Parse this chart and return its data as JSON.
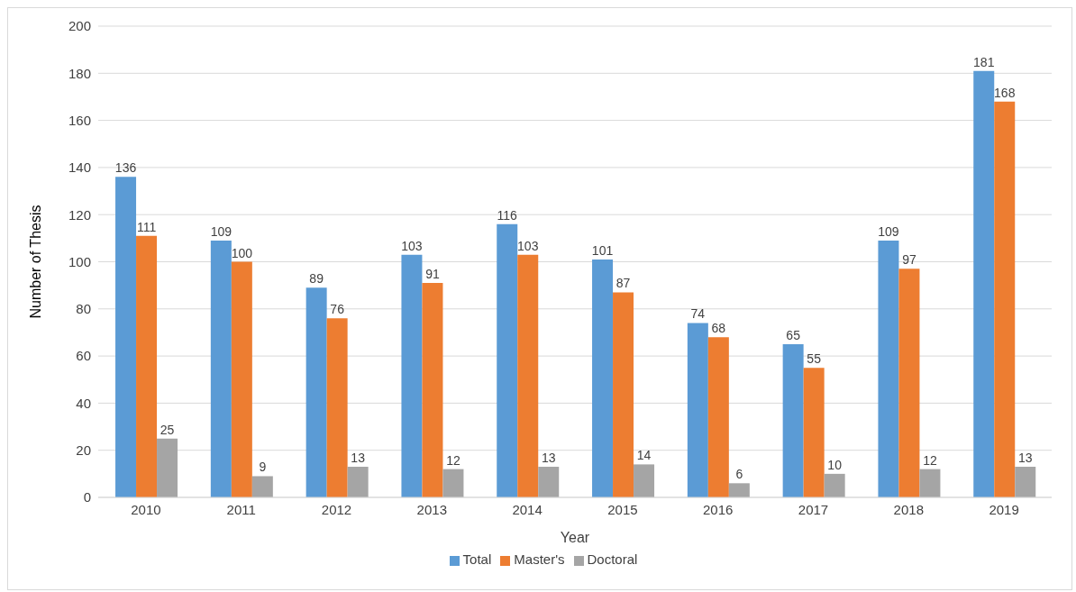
{
  "chart_data": {
    "type": "bar",
    "xlabel": "Year",
    "ylabel": "Number of Thesis",
    "categories": [
      "2010",
      "2011",
      "2012",
      "2013",
      "2014",
      "2015",
      "2016",
      "2017",
      "2018",
      "2019"
    ],
    "series": [
      {
        "name": "Total",
        "color": "#5b9bd5",
        "values": [
          136,
          109,
          89,
          103,
          116,
          101,
          74,
          65,
          109,
          181
        ]
      },
      {
        "name": "Master's",
        "color": "#ed7d31",
        "values": [
          111,
          100,
          76,
          91,
          103,
          87,
          68,
          55,
          97,
          168
        ]
      },
      {
        "name": "Doctoral",
        "color": "#a5a5a5",
        "values": [
          25,
          9,
          13,
          12,
          13,
          14,
          6,
          10,
          12,
          13
        ]
      }
    ],
    "ylim": [
      0,
      200
    ],
    "yticks": [
      0,
      20,
      40,
      60,
      80,
      100,
      120,
      140,
      160,
      180,
      200
    ],
    "grid": "y",
    "legend": "bottom",
    "data_labels": true
  }
}
